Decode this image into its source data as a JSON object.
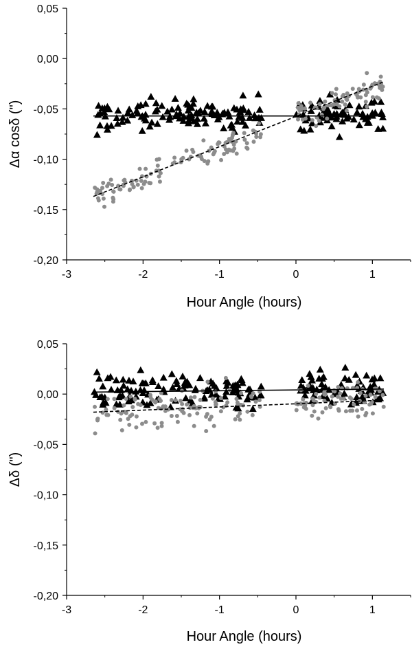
{
  "chart_data": [
    {
      "type": "scatter",
      "xlabel": "Hour Angle (hours)",
      "ylabel": "Δα cosδ (\")",
      "xlim": [
        -3.0,
        1.5
      ],
      "ylim": [
        -0.2,
        0.05
      ],
      "xticks": [
        -3,
        -2,
        -1,
        0,
        1
      ],
      "xtick_labels": [
        "-3",
        "-2",
        "-1",
        "0",
        "1"
      ],
      "yticks": [
        -0.2,
        -0.15,
        -0.1,
        -0.05,
        0.0,
        0.05
      ],
      "ytick_labels": [
        "-0,20",
        "-0,15",
        "-0,10",
        "-0,05",
        "0,00",
        "0,05"
      ],
      "grid": false,
      "series": [
        {
          "marker": "triangle",
          "color": "#000000",
          "clusters": [
            {
              "x_range": [
                -2.65,
                -0.45
              ],
              "y_center": -0.056,
              "spread": 0.011,
              "count": 120
            },
            {
              "x_range": [
                0.0,
                1.15
              ],
              "y_center": -0.056,
              "spread": 0.011,
              "count": 75
            }
          ],
          "fit": {
            "style": "solid",
            "x": [
              -2.65,
              1.15
            ],
            "y": [
              -0.057,
              -0.057
            ]
          }
        },
        {
          "marker": "circle",
          "color": "#8c8c8c",
          "clusters": [
            {
              "x_range": [
                -2.65,
                -0.45
              ],
              "trend": [
                -0.137,
                -0.075
              ],
              "spread": 0.009,
              "count": 120
            },
            {
              "x_range": [
                0.0,
                1.15
              ],
              "trend": [
                -0.056,
                -0.028
              ],
              "spread": 0.009,
              "count": 75
            }
          ],
          "fit": {
            "style": "dashed",
            "x": [
              -2.65,
              1.15
            ],
            "y": [
              -0.137,
              -0.023
            ]
          }
        }
      ]
    },
    {
      "type": "scatter",
      "xlabel": "Hour Angle (hours)",
      "ylabel": "Δδ (\")",
      "xlim": [
        -3.0,
        1.5
      ],
      "ylim": [
        -0.2,
        0.05
      ],
      "xticks": [
        -3,
        -2,
        -1,
        0,
        1
      ],
      "xtick_labels": [
        "-3",
        "-2",
        "-1",
        "0",
        "1"
      ],
      "yticks": [
        -0.2,
        -0.15,
        -0.1,
        -0.05,
        0.0,
        0.05
      ],
      "ytick_labels": [
        "-0,20",
        "-0,15",
        "-0,10",
        "-0,05",
        "0,00",
        "0,05"
      ],
      "grid": false,
      "series": [
        {
          "marker": "triangle",
          "color": "#000000",
          "clusters": [
            {
              "x_range": [
                -2.65,
                -0.45
              ],
              "y_center": 0.003,
              "spread": 0.012,
              "count": 120
            },
            {
              "x_range": [
                0.0,
                1.15
              ],
              "y_center": 0.004,
              "spread": 0.012,
              "count": 75
            }
          ],
          "fit": {
            "style": "solid",
            "x": [
              -2.65,
              1.15
            ],
            "y": [
              0.002,
              0.005
            ]
          }
        },
        {
          "marker": "circle",
          "color": "#8c8c8c",
          "clusters": [
            {
              "x_range": [
                -2.65,
                -0.45
              ],
              "trend": [
                -0.017,
                -0.01
              ],
              "spread": 0.012,
              "count": 120
            },
            {
              "x_range": [
                0.0,
                1.15
              ],
              "trend": [
                -0.009,
                -0.006
              ],
              "spread": 0.012,
              "count": 75
            }
          ],
          "fit": {
            "style": "dashed",
            "x": [
              -2.65,
              1.15
            ],
            "y": [
              -0.018,
              -0.006
            ]
          }
        }
      ]
    }
  ]
}
